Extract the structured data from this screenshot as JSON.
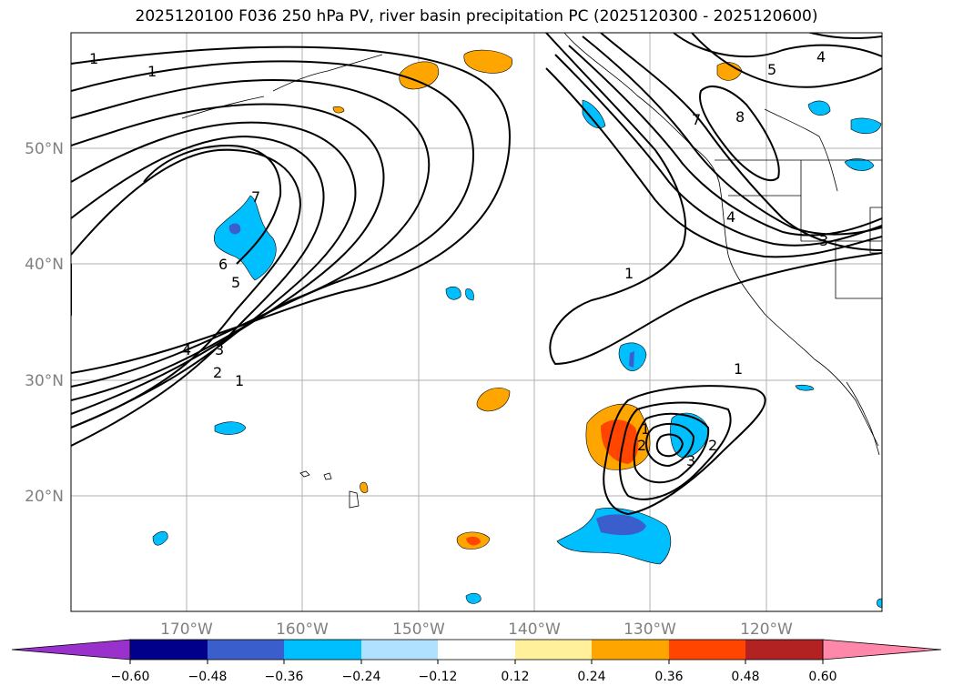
{
  "title": "2025120100 F036 250 hPa PV, river basin precipitation PC (2025120300 - 2025120600)",
  "map": {
    "lat_labels": [
      "50°N",
      "40°N",
      "30°N",
      "20°N"
    ],
    "lon_labels": [
      "170°W",
      "160°W",
      "150°W",
      "140°W",
      "130°W",
      "120°W"
    ],
    "extent": {
      "lon_min": -180,
      "lon_max": -110,
      "lat_min": 10,
      "lat_max": 60
    }
  },
  "contour_labels": [
    "1",
    "1",
    "7",
    "6",
    "5",
    "4",
    "3",
    "2",
    "1",
    "1",
    "1",
    "8",
    "7",
    "5",
    "4",
    "4",
    "3",
    "1",
    "2",
    "3",
    "2"
  ],
  "colorbar": {
    "tick_labels": [
      "−0.60",
      "−0.48",
      "−0.36",
      "−0.24",
      "−0.12",
      "0.12",
      "0.24",
      "0.36",
      "0.48",
      "0.60"
    ],
    "colors": [
      "#9932cc",
      "#00008b",
      "#3a5fcd",
      "#00bfff",
      "#b0e2ff",
      "#ffffff",
      "#fff09b",
      "#ffa500",
      "#ff4500",
      "#b22222",
      "#ff88aa"
    ]
  }
}
